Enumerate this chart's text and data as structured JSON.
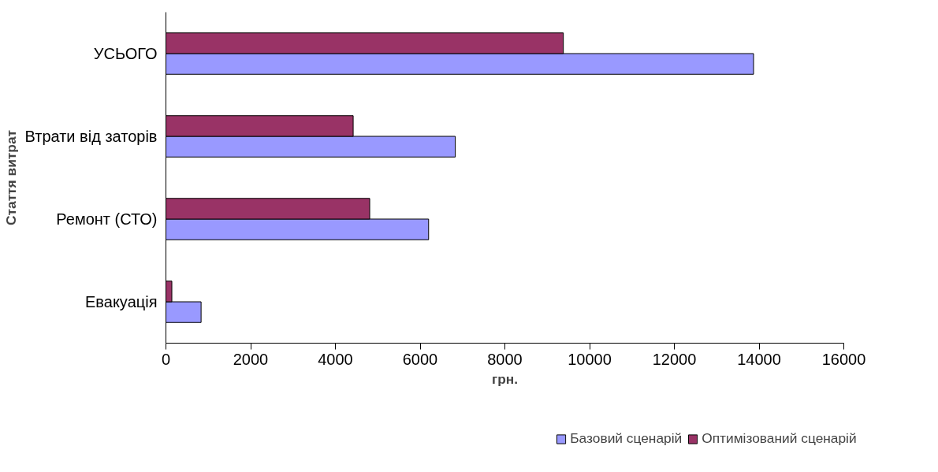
{
  "chart_data": {
    "type": "bar",
    "orientation": "horizontal",
    "xlabel": "грн.",
    "ylabel": "Стаття витрат",
    "categories": [
      "УСЬОГО",
      "Втрати від заторів",
      "Ремонт (СТО)",
      "Евакуація"
    ],
    "series": [
      {
        "name": "Базовий сценарій",
        "color": "#9999ff",
        "values": [
          13870,
          6830,
          6200,
          830
        ]
      },
      {
        "name": "Оптимізований сценарій",
        "color": "#993366",
        "values": [
          9380,
          4420,
          4810,
          140
        ]
      }
    ],
    "xlim": [
      0,
      16000
    ],
    "xticks": [
      0,
      2000,
      4000,
      6000,
      8000,
      10000,
      12000,
      14000,
      16000
    ],
    "grid": false,
    "legend": "bottom"
  }
}
